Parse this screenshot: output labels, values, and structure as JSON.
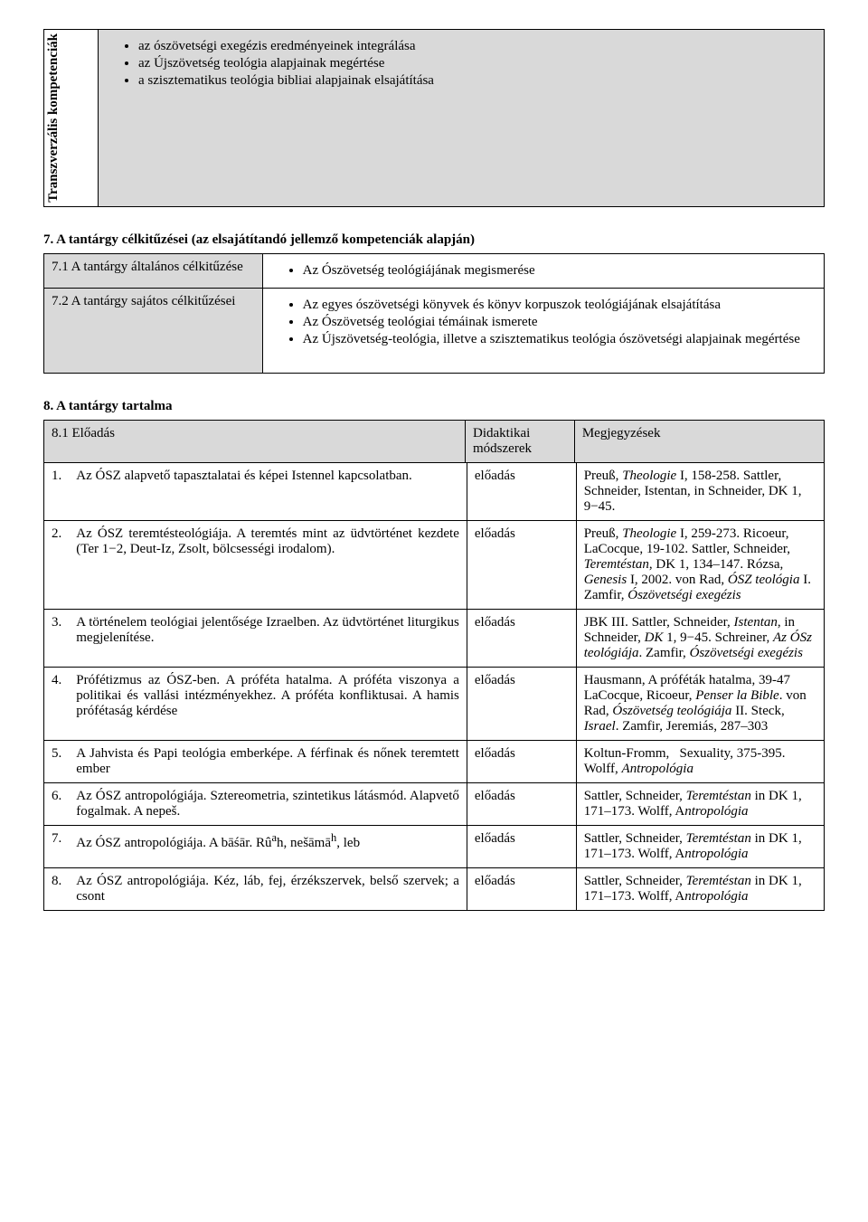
{
  "table1": {
    "vertical_header": "Transzverzális kompetenciák",
    "items": [
      "az ószövetségi exegézis eredményeinek integrálása",
      "az Újszövetség teológia alapjainak megértése",
      "a szisztematikus teológia bibliai alapjainak elsajátítása"
    ]
  },
  "section7_title": "7. A tantárgy célkitűzései (az elsajátítandó jellemző kompetenciák alapján)",
  "table7": {
    "rows": [
      {
        "left": "7.1 A tantárgy általános célkitűzése",
        "items": [
          "Az Ószövetség teológiájának megismerése"
        ]
      },
      {
        "left": "7.2 A tantárgy sajátos célkitűzései",
        "items": [
          "Az egyes ószövetségi könyvek és könyv korpuszok teológiájának elsajátítása",
          "Az Ószövetség teológiai témáinak ismerete",
          "Az Újszövetség-teológia, illetve a szisztematikus teológia ószövetségi alapjainak megértése"
        ]
      }
    ]
  },
  "section8_title": "8. A tantárgy tartalma",
  "table8": {
    "head": {
      "c1": "8.1 Előadás",
      "c2": "Didaktikai módszerek",
      "c3": "Megjegyzések"
    },
    "rows": [
      {
        "n": "1.",
        "topic": "Az ÓSZ alapvető tapasztalatai és képei Istennel kapcsolatban.",
        "method": "előadás",
        "notes_html": "Preuß, <i>Theologie</i> I, 158-258. Sattler, Schneider, Istentan, in Schneider, DK 1, 9−45."
      },
      {
        "n": "2.",
        "topic": "Az ÓSZ teremtésteológiája. A teremtés mint az üdvtörténet kezdete (Ter 1−2, Deut-Iz, Zsolt, bölcsességi irodalom).",
        "method": "előadás",
        "notes_html": "Preuß, <i>Theologie</i> I, 259-273. Ricoeur, LaCocque, 19-102. Sattler, Schneider, <i>Teremtéstan</i>, DK 1, 134–147. Rózsa, <i>Genesis</i> I, 2002. von Rad, <i>ÓSZ teológia</i> I. Zamfir, <i>Ószövetségi exegézis</i>"
      },
      {
        "n": "3.",
        "topic": "A történelem teológiai jelentősége Izraelben. Az üdvtörténet liturgikus megjelenítése.",
        "method": "előadás",
        "notes_html": "JBK III. Sattler, Schneider, <i>Istentan</i>, in Schneider, <i>DK</i> 1, 9−45. Schreiner, <i>Az ÓSz teológiája</i>. Zamfir, <i>Ószövetségi exegézis</i>"
      },
      {
        "n": "4.",
        "topic": "Prófétizmus az ÓSZ-ben. A próféta hatalma. A próféta viszonya a politikai és vallási intézményekhez. A próféta konfliktusai. A hamis prófétaság kérdése",
        "method": "előadás",
        "notes_html": "Hausmann, A próféták hatalma, 39-47 LaCocque, Ricoeur, <i>Penser la Bible</i>. von Rad, <i>Ószövetség teológiája</i> II. Steck, <i>Israel</i>. Zamfir, Jeremiás, 287–303"
      },
      {
        "n": "5.",
        "topic": "A Jahvista és Papi teológia emberképe. A férfinak és nőnek teremtett ember",
        "method": "előadás",
        "notes_html": "Koltun-Fromm,&nbsp;&nbsp;&nbsp;Sexuality, 375-395. Wolff, <i>Antropológia</i>"
      },
      {
        "n": "6.",
        "topic": "Az ÓSZ antropológiája. Sztereometria, szintetikus látásmód. Alapvető fogalmak. A nepeš.",
        "method": "előadás",
        "notes_html": "Sattler, Schneider, <i>Teremtéstan</i> in DK 1, 171–173. Wolff, A<i>ntropológia</i>"
      },
      {
        "n": "7.",
        "topic_html": "Az ÓSZ antropológiája. A bāśār. Rû<sup>a</sup>h, nešāmā<sup>h</sup>, leb",
        "method": "előadás",
        "notes_html": "Sattler, Schneider, <i>Teremtéstan</i> in DK 1, 171–173. Wolff, A<i>ntropológia</i>"
      },
      {
        "n": "8.",
        "topic": "Az ÓSZ antropológiája. Kéz, láb, fej, érzékszervek, belső szervek; a csont",
        "method": "előadás",
        "notes_html": "Sattler, Schneider, <i>Teremtéstan</i> in DK 1, 171–173. Wolff, A<i>ntropológia</i>"
      }
    ]
  }
}
